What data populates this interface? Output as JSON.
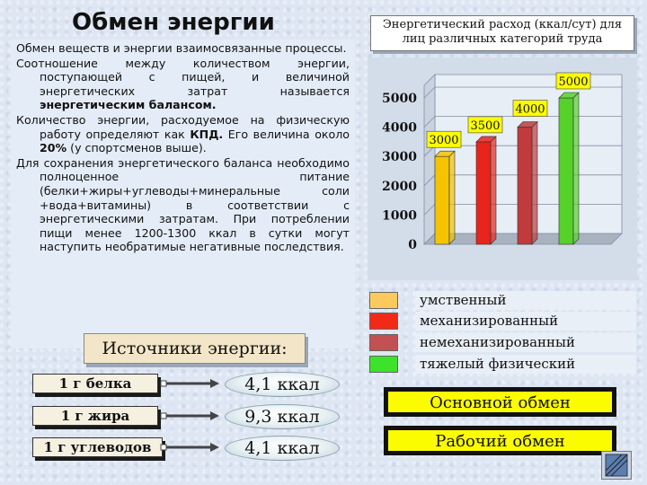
{
  "title": "Обмен энергии",
  "paragraphs": [
    {
      "parts": [
        {
          "t": "Обмен веществ и энергии взаимосвязанные процессы.",
          "b": false
        }
      ]
    },
    {
      "parts": [
        {
          "t": "Соотношение между количеством энергии, поступающей с пищей, и величиной энергетических затрат называется ",
          "b": false
        },
        {
          "t": "энергетическим балансом.",
          "b": true
        }
      ]
    },
    {
      "parts": [
        {
          "t": "Количество энергии, расходуемое на физическую работу определяют как ",
          "b": false
        },
        {
          "t": "КПД.",
          "b": true
        },
        {
          "t": " Его величина около ",
          "b": false
        },
        {
          "t": "20%",
          "b": true
        },
        {
          "t": " (у спортсменов выше).",
          "b": false
        }
      ]
    },
    {
      "parts": [
        {
          "t": "Для сохранения энергетического баланса необходимо полноценное питание (белки+жиры+углеводы+минеральные соли +вода+витамины) в соответствии с энергетическими затратам. При потреблении пищи менее 1200-1300 ккал в сутки могут наступить необратимые негативные последствия.",
          "b": false
        }
      ]
    }
  ],
  "energy_sources": {
    "heading": "Источники энергии:",
    "items": [
      {
        "name": "1 г белка",
        "value": "4,1 ккал"
      },
      {
        "name": "1 г жира",
        "value": "9,3 ккал"
      },
      {
        "name": "1 г углеводов",
        "value": "4,1 ккал"
      }
    ]
  },
  "chart_title": "Энергетический расход (ккал/сут) для лиц различных категорий труда",
  "chart_data": {
    "type": "bar",
    "title": "Энергетический расход (ккал/сут) для лиц различных категорий труда",
    "categories": [
      "умственный",
      "механизированный",
      "немеханизированный",
      "тяжелый физический"
    ],
    "values": [
      3000,
      3500,
      4000,
      5000
    ],
    "value_labels": [
      "3000",
      "3500",
      "4000",
      "5000"
    ],
    "colors": [
      "#f5c300",
      "#e8241c",
      "#c03b3b",
      "#55d12a"
    ],
    "ylim": [
      0,
      5000
    ],
    "yticks": [
      "0",
      "1000",
      "2000",
      "3000",
      "4000",
      "5000"
    ],
    "grid": true,
    "style": "3d"
  },
  "legend": [
    {
      "label": "умственный",
      "color": "#fcc95e"
    },
    {
      "label": "механизированный",
      "color": "#f02a16"
    },
    {
      "label": "немеханизированный",
      "color": "#c25151"
    },
    {
      "label": "тяжелый физический",
      "color": "#3de22a"
    }
  ],
  "buttons": {
    "basal": "Основной обмен",
    "working": "Рабочий обмен"
  }
}
